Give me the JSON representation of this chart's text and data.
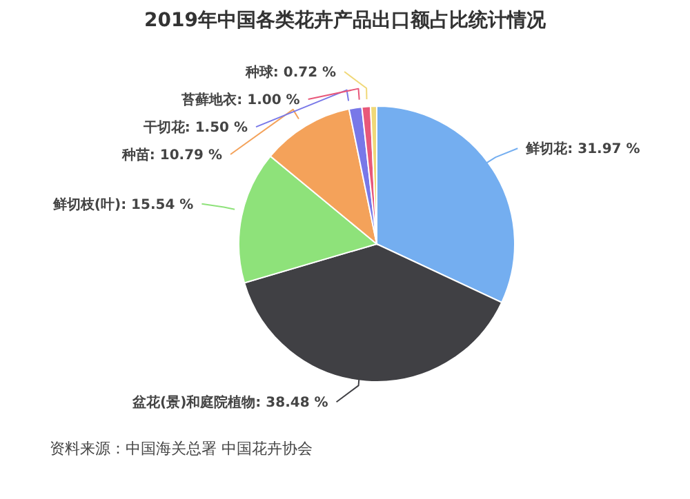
{
  "chart_data": {
    "type": "pie",
    "title": "2019年中国各类花卉产品出口额占比统计情况",
    "categories": [
      "鲜切花",
      "盆花(景)和庭院植物",
      "鲜切枝(叶)",
      "种苗",
      "干切花",
      "苔藓地衣",
      "种球"
    ],
    "values": [
      31.97,
      38.48,
      15.54,
      10.79,
      1.5,
      1.0,
      0.72
    ],
    "colors": [
      "#74aef0",
      "#404044",
      "#8ee27a",
      "#f4a25a",
      "#7878e8",
      "#e8587a",
      "#f0d878"
    ],
    "value_labels": [
      "31.97 %",
      "38.48 %",
      "15.54 %",
      "10.79 %",
      "1.50 %",
      "1.00 %",
      "0.72 %"
    ],
    "annotations": [
      "资料来源：中国海关总署 中国花卉协会"
    ]
  }
}
